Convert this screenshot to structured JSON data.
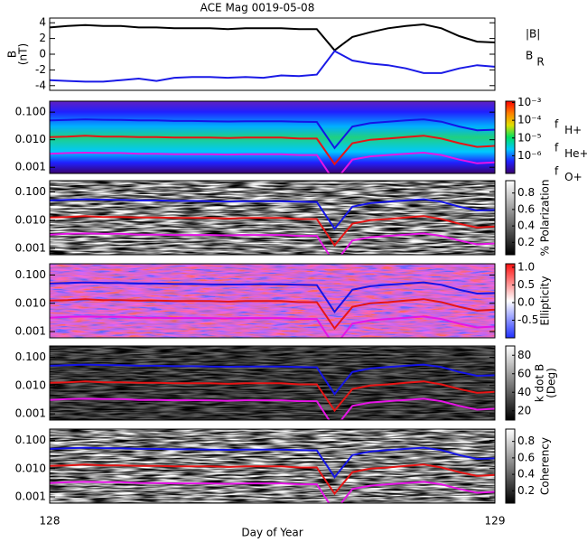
{
  "chart_data": [
    {
      "type": "line",
      "title": "ACE Mag 0019-05-08",
      "ylabel": [
        "B",
        "(nT)"
      ],
      "x": [
        128.0,
        128.04,
        128.08,
        128.12,
        128.16,
        128.2,
        128.24,
        128.28,
        128.32,
        128.36,
        128.4,
        128.44,
        128.48,
        128.52,
        128.56,
        128.6,
        128.64,
        128.68,
        128.72,
        128.76,
        128.8,
        128.84,
        128.88,
        128.92,
        128.96,
        129.0
      ],
      "xlim": [
        128,
        129
      ],
      "ylim": [
        -4.6,
        4.6
      ],
      "yticks": [
        -4,
        -2,
        0,
        2,
        4
      ],
      "series": [
        {
          "name": "|B|",
          "color": "#000000",
          "values": [
            3.4,
            3.6,
            3.7,
            3.6,
            3.6,
            3.4,
            3.4,
            3.3,
            3.3,
            3.3,
            3.2,
            3.3,
            3.3,
            3.3,
            3.2,
            3.2,
            0.5,
            2.2,
            2.8,
            3.3,
            3.6,
            3.8,
            3.3,
            2.3,
            1.6,
            1.5
          ]
        },
        {
          "name": {
            "symbol": "B",
            "subscript": "R"
          },
          "color": "#1a1ae6",
          "values": [
            -3.3,
            -3.4,
            -3.5,
            -3.5,
            -3.3,
            -3.1,
            -3.4,
            -3.0,
            -2.9,
            -2.9,
            -3.0,
            -2.9,
            -3.0,
            -2.7,
            -2.8,
            -2.6,
            0.4,
            -0.8,
            -1.2,
            -1.4,
            -1.8,
            -2.4,
            -2.4,
            -1.8,
            -1.4,
            -1.6
          ]
        }
      ]
    },
    {
      "type": "spectrogram",
      "xlabel": "Day of Year",
      "xlim": [
        128,
        129
      ],
      "xticks": [
        128,
        129
      ],
      "log_y": true,
      "ylim": [
        0.0006,
        0.25
      ],
      "yticks": [
        0.001,
        {
          "value": 0.01,
          "label": "0.010"
        },
        {
          "value": 0.1,
          "label": "0.100"
        }
      ],
      "x": [
        128.0,
        128.04,
        128.08,
        128.12,
        128.16,
        128.2,
        128.24,
        128.28,
        128.32,
        128.36,
        128.4,
        128.44,
        128.48,
        128.52,
        128.56,
        128.6,
        128.64,
        128.68,
        128.72,
        128.76,
        128.8,
        128.84,
        128.88,
        128.92,
        128.96,
        129.0
      ],
      "series": [
        {
          "name": {
            "symbol": "f",
            "subscript": "H+"
          },
          "color": "#1414e6",
          "values": [
            0.05,
            0.052,
            0.055,
            0.053,
            0.052,
            0.05,
            0.05,
            0.048,
            0.048,
            0.047,
            0.046,
            0.047,
            0.047,
            0.047,
            0.045,
            0.044,
            0.005,
            0.03,
            0.04,
            0.045,
            0.05,
            0.055,
            0.045,
            0.03,
            0.022,
            0.023
          ]
        },
        {
          "name": {
            "symbol": "f",
            "subscript": "He+"
          },
          "color": "#e61414",
          "values": [
            0.0125,
            0.013,
            0.014,
            0.013,
            0.013,
            0.0125,
            0.0125,
            0.012,
            0.012,
            0.012,
            0.0115,
            0.012,
            0.012,
            0.012,
            0.011,
            0.011,
            0.0013,
            0.0075,
            0.01,
            0.011,
            0.0125,
            0.014,
            0.011,
            0.0075,
            0.0055,
            0.006
          ]
        },
        {
          "name": {
            "symbol": "f",
            "subscript": "O+"
          },
          "color": "#e614e6",
          "values": [
            0.0031,
            0.0033,
            0.0034,
            0.0033,
            0.0033,
            0.0031,
            0.0031,
            0.003,
            0.003,
            0.003,
            0.0029,
            0.003,
            0.003,
            0.003,
            0.0028,
            0.0028,
            0.0003,
            0.0019,
            0.0025,
            0.0028,
            0.0031,
            0.0034,
            0.0028,
            0.0019,
            0.0014,
            0.0015
          ]
        }
      ],
      "panels": [
        {
          "colorbar": {
            "colors": [
              "#3a006e",
              "#2020ff",
              "#00c8ff",
              "#00e060",
              "#e0e000",
              "#ff8000",
              "#ff0000"
            ],
            "log": true,
            "lim": [
              1e-07,
              0.0012
            ],
            "ticks": [
              {
                "value": 0.001,
                "label": "10⁻³"
              },
              {
                "value": 0.0001,
                "label": "10⁻⁴"
              },
              {
                "value": 1e-05,
                "label": "10⁻⁵"
              },
              {
                "value": 1e-06,
                "label": "10⁻⁶"
              }
            ]
          }
        },
        {
          "colorbar": {
            "label": [
              "% Polarization"
            ],
            "colors": [
              "#000000",
              "#ffffff"
            ],
            "lim": [
              0.05,
              0.95
            ],
            "ticks": [
              0.2,
              0.4,
              0.6,
              0.8
            ]
          }
        },
        {
          "colorbar": {
            "label": [
              "Ellipticity"
            ],
            "colors": [
              "#2030ff",
              "#ffffff",
              "#ff1010"
            ],
            "lim": [
              -1,
              1.1
            ],
            "ticks": [
              -0.5,
              {
                "value": 0,
                "label": "0.0"
              },
              0.5,
              {
                "value": 1,
                "label": "1.0"
              }
            ]
          }
        },
        {
          "colorbar": {
            "label": [
              "k dot B",
              "(Deg)"
            ],
            "colors": [
              "#000000",
              "#ffffff"
            ],
            "lim": [
              10,
              90
            ],
            "ticks": [
              20,
              40,
              60,
              80
            ]
          }
        },
        {
          "colorbar": {
            "label": [
              "Coherency"
            ],
            "colors": [
              "#000000",
              "#ffffff"
            ],
            "lim": [
              0.05,
              0.95
            ],
            "ticks": [
              0.2,
              0.4,
              0.6,
              0.8
            ]
          }
        }
      ]
    }
  ]
}
